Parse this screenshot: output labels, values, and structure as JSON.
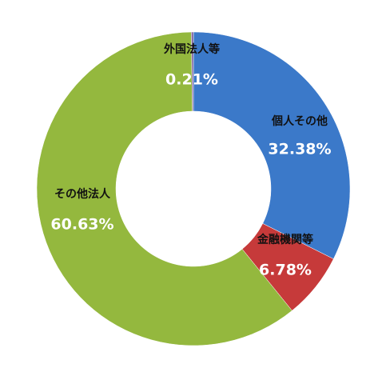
{
  "chart_data": {
    "type": "donut",
    "categories": [
      "個人その他",
      "金融機関等",
      "その他法人",
      "外国法人等"
    ],
    "values": [
      32.38,
      6.78,
      60.63,
      0.21
    ],
    "value_labels": [
      "32.38%",
      "6.78%",
      "60.63%",
      "0.21%"
    ],
    "colors": [
      "#3b79c9",
      "#c63a3a",
      "#94b83e",
      "#7d5fa0"
    ]
  }
}
